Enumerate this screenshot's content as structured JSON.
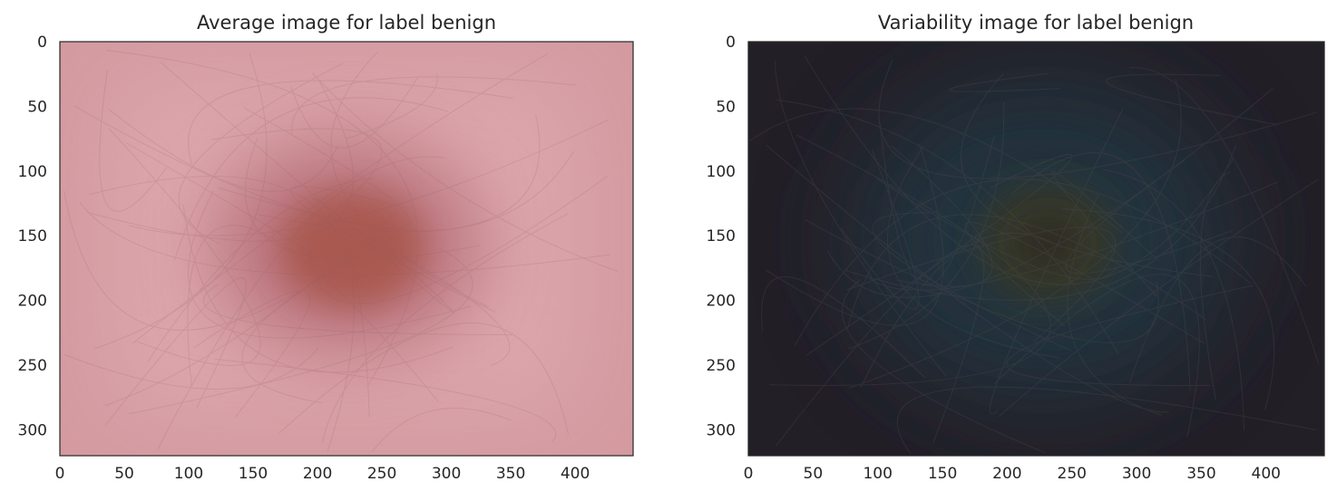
{
  "chart_data": [
    {
      "type": "image",
      "title": "Average image for label benign",
      "xlim": [
        0,
        445
      ],
      "ylim": [
        320,
        0
      ],
      "xticks": [
        0,
        50,
        100,
        150,
        200,
        250,
        300,
        350,
        400
      ],
      "yticks": [
        0,
        50,
        100,
        150,
        200,
        250,
        300
      ],
      "image": {
        "background": "#d9a0a6",
        "blob_center": [
          225,
          160
        ],
        "blob_color": "#a8574c",
        "edge_color": "#c88f96",
        "style": "mean skin lesion, dark brown center on pink skin with faint hair lines"
      }
    },
    {
      "type": "image",
      "title": "Variability image for label benign",
      "xlim": [
        0,
        445
      ],
      "ylim": [
        320,
        0
      ],
      "xticks": [
        0,
        50,
        100,
        150,
        200,
        250,
        300,
        350,
        400
      ],
      "yticks": [
        0,
        50,
        100,
        150,
        200,
        250,
        300
      ],
      "image": {
        "background": "#231f27",
        "blob_center": [
          230,
          155
        ],
        "blob_color": "#3a3a26",
        "halo_color": "#22353f",
        "style": "standard deviation image, dark with teal halo and faint hair lines"
      }
    }
  ]
}
